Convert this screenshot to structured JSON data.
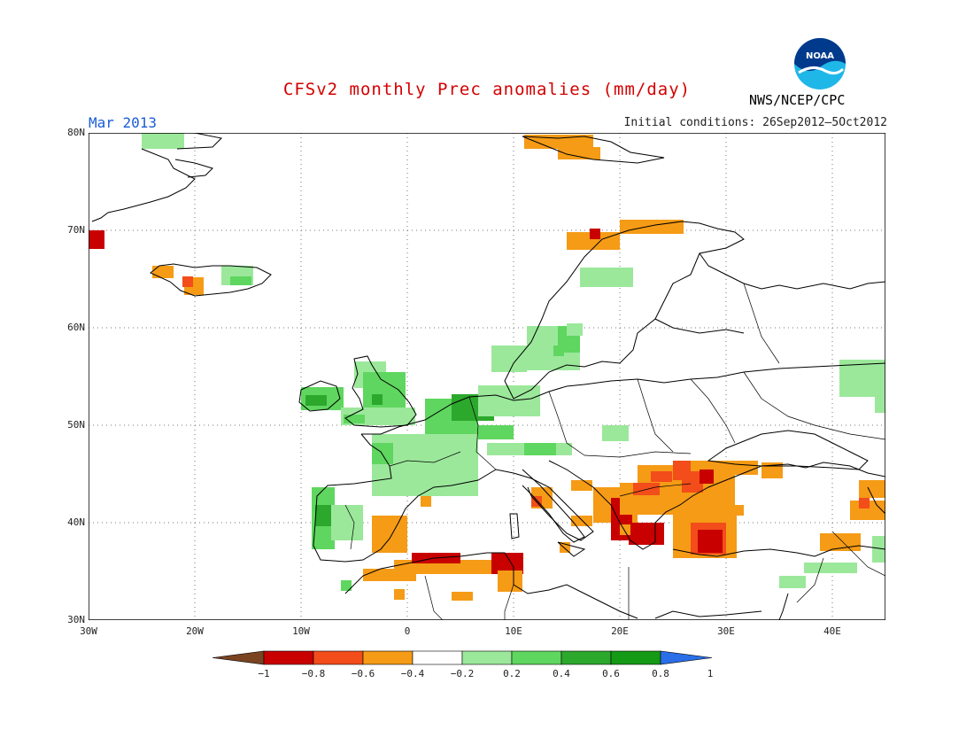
{
  "header": {
    "title": "CFSv2 monthly Prec anomalies (mm/day)",
    "month": "Mar 2013",
    "initial_conditions": "Initial conditions: 26Sep2012–5Oct2012",
    "agency": "NWS/NCEP/CPC",
    "logo_text": "NOAA"
  },
  "map": {
    "lon_range": [
      -30,
      45
    ],
    "lat_range": [
      30,
      80
    ],
    "lat_labels": [
      "30N",
      "40N",
      "50N",
      "60N",
      "70N",
      "80N"
    ],
    "lon_labels": [
      "30W",
      "20W",
      "10W",
      "0",
      "10E",
      "20E",
      "30E",
      "40E"
    ]
  },
  "colorbar": {
    "labels": [
      "−1",
      "−0.8",
      "−0.6",
      "−0.4",
      "−0.2",
      "0.2",
      "0.4",
      "0.6",
      "0.8",
      "1"
    ],
    "colors": [
      "#7a4422",
      "#c80000",
      "#f24d1a",
      "#f59b16",
      "#ffffff",
      "#9be89b",
      "#5fd65f",
      "#2ca82c",
      "#149a14",
      "#2a6ee8"
    ]
  },
  "colors": {
    "strong_dry": "#c80000",
    "dry": "#f24d1a",
    "moderate_dry": "#f59b16",
    "wet_light": "#9be89b",
    "wet": "#5fd65f",
    "wet_strong": "#2ca82c"
  }
}
